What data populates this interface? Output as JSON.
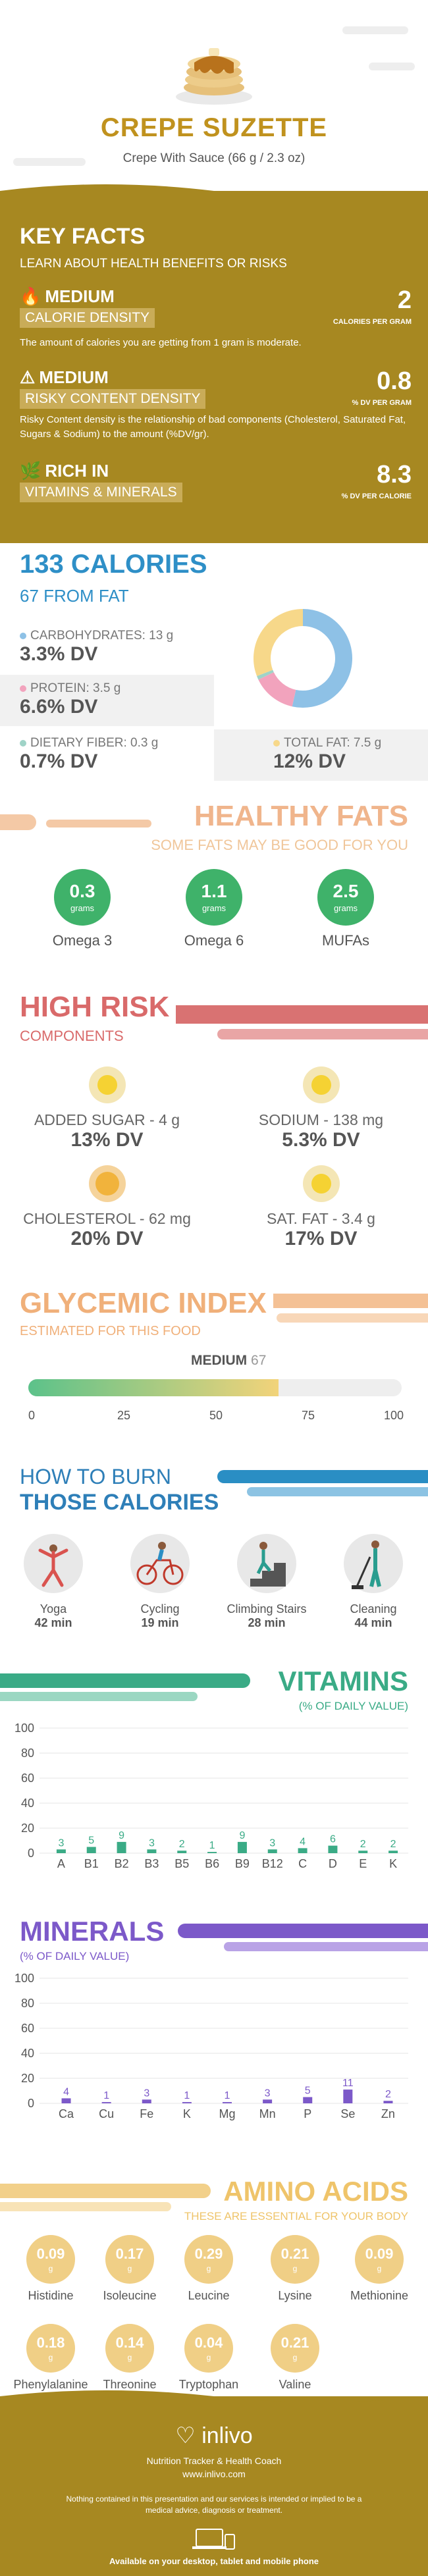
{
  "header": {
    "title": "CREPE SUZETTE",
    "subtitle": "Crepe With Sauce (66 g / 2.3 oz)"
  },
  "key_facts": {
    "title": "KEY FACTS",
    "subtitle": "LEARN ABOUT HEALTH BENEFITS OR RISKS",
    "calorie": {
      "level": "MEDIUM",
      "name": "CALORIE DENSITY",
      "value": "2",
      "unit": "CALORIES PER GRAM",
      "desc": "The amount of calories you are getting from 1 gram is moderate."
    },
    "risky": {
      "level": "MEDIUM",
      "name": "RISKY CONTENT DENSITY",
      "value": "0.8",
      "unit": "% DV PER GRAM",
      "desc": "Risky Content density is the relationship of bad components (Cholesterol, Saturated Fat, Sugars & Sodium) to the amount (%DV/gr)."
    },
    "rich": {
      "level": "RICH IN",
      "name": "VITAMINS & MINERALS",
      "value": "8.3",
      "unit": "% DV PER CALORIE"
    }
  },
  "calories": {
    "title": "133 CALORIES",
    "from_fat": "67 FROM FAT",
    "items": [
      {
        "label": "CARBOHYDRATES: 13 g",
        "dv": "3.3% DV",
        "color": "#8ec1e6",
        "value": 13
      },
      {
        "label": "PROTEIN: 3.5 g",
        "dv": "6.6% DV",
        "color": "#f2a3bd",
        "value": 3.5
      },
      {
        "label": "DIETARY FIBER: 0.3 g",
        "dv": "0.7% DV",
        "color": "#9fd3c7",
        "value": 0.3
      },
      {
        "label": "TOTAL FAT: 7.5 g",
        "dv": "12% DV",
        "color": "#f7d88a",
        "value": 7.5
      }
    ]
  },
  "healthy_fats": {
    "title": "HEALTHY FATS",
    "subtitle": "SOME FATS MAY BE GOOD FOR YOU",
    "unit": "grams",
    "items": [
      {
        "name": "Omega 3",
        "value": "0.3"
      },
      {
        "name": "Omega 6",
        "value": "1.1"
      },
      {
        "name": "MUFAs",
        "value": "2.5"
      }
    ]
  },
  "high_risk": {
    "title": "HIGH RISK",
    "subtitle": "COMPONENTS",
    "items": [
      {
        "label": "ADDED SUGAR - 4 g",
        "dv": "13% DV"
      },
      {
        "label": "SODIUM - 138 mg",
        "dv": "5.3% DV"
      },
      {
        "label": "CHOLESTEROL - 62 mg",
        "dv": "20% DV"
      },
      {
        "label": "SAT. FAT - 3.4 g",
        "dv": "17% DV"
      }
    ]
  },
  "glycemic": {
    "title": "GLYCEMIC INDEX",
    "subtitle": "ESTIMATED FOR THIS FOOD",
    "level": "MEDIUM",
    "value": 67,
    "ticks": [
      "0",
      "25",
      "50",
      "75",
      "100"
    ]
  },
  "burn": {
    "title1": "HOW TO BURN",
    "title2": "THOSE CALORIES",
    "items": [
      {
        "name": "Yoga",
        "mins": "42 min",
        "icon": "yoga-icon"
      },
      {
        "name": "Cycling",
        "mins": "19 min",
        "icon": "cycling-icon"
      },
      {
        "name": "Climbing Stairs",
        "mins": "28 min",
        "icon": "stairs-icon"
      },
      {
        "name": "Cleaning",
        "mins": "44 min",
        "icon": "cleaning-icon"
      }
    ]
  },
  "chart_data": [
    {
      "type": "bar",
      "title": "VITAMINS",
      "subtitle": "(% OF DAILY VALUE)",
      "categories": [
        "A",
        "B1",
        "B2",
        "B3",
        "B5",
        "B6",
        "B9",
        "B12",
        "C",
        "D",
        "E",
        "K"
      ],
      "values": [
        3,
        5,
        9,
        3,
        2,
        1,
        9,
        3,
        4,
        6,
        2,
        2
      ],
      "ylim": [
        0,
        100
      ],
      "yticks": [
        "0",
        "20",
        "40",
        "60",
        "80",
        "100"
      ],
      "color": "#3aab86"
    },
    {
      "type": "bar",
      "title": "MINERALS",
      "subtitle": "(% OF DAILY VALUE)",
      "categories": [
        "Ca",
        "Cu",
        "Fe",
        "K",
        "Mg",
        "Mn",
        "P",
        "Se",
        "Zn"
      ],
      "values": [
        4,
        1,
        3,
        1,
        1,
        3,
        5,
        11,
        2
      ],
      "ylim": [
        0,
        100
      ],
      "yticks": [
        "0",
        "20",
        "40",
        "60",
        "80",
        "100"
      ],
      "color": "#7c59c9"
    }
  ],
  "amino": {
    "title": "AMINO ACIDS",
    "subtitle": "THESE ARE ESSENTIAL FOR YOUR BODY",
    "unit": "g",
    "items": [
      {
        "name": "Histidine",
        "value": "0.09"
      },
      {
        "name": "Isoleucine",
        "value": "0.17"
      },
      {
        "name": "Leucine",
        "value": "0.29"
      },
      {
        "name": "Lysine",
        "value": "0.21"
      },
      {
        "name": "Methionine",
        "value": "0.09"
      },
      {
        "name": "Phenylalanine",
        "value": "0.18"
      },
      {
        "name": "Threonine",
        "value": "0.14"
      },
      {
        "name": "Tryptophan",
        "value": "0.04"
      },
      {
        "name": "Valine",
        "value": "0.21"
      }
    ]
  },
  "footer": {
    "brand": "inlivo",
    "line1": "Nutrition Tracker & Health Coach",
    "line2": "www.inlivo.com",
    "disclaimer": "Nothing contained in this presentation and our services is intended or implied to be a medical advice, diagnosis or treatment.",
    "available": "Available on your desktop, tablet and mobile phone"
  }
}
